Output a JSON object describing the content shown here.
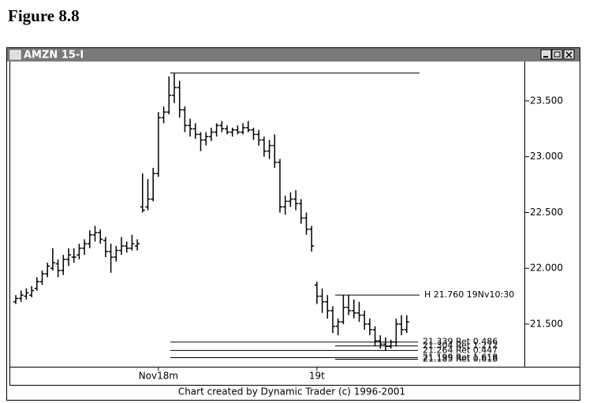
{
  "figure_label": "Figure 8.8",
  "window_title": "AMZN 15-I",
  "footer": "Chart created by Dynamic Trader (c) 1996-2001",
  "chart_data": {
    "type": "ohlc",
    "categories": [
      null,
      null,
      null,
      null,
      null,
      null,
      null,
      null,
      null,
      null,
      null,
      null,
      null,
      null,
      null,
      null,
      null,
      null,
      null,
      null,
      null,
      null,
      null,
      null,
      null,
      null,
      null,
      "Nov18m",
      null,
      null,
      null,
      null,
      null,
      null,
      null,
      null,
      null,
      null,
      null,
      null,
      null,
      null,
      null,
      null,
      null,
      null,
      null,
      null,
      null,
      null,
      null,
      null,
      null,
      null,
      null,
      null,
      null,
      "19t",
      null,
      null,
      null,
      null,
      null,
      null,
      null,
      null,
      null,
      null,
      null,
      null,
      null,
      null,
      null,
      null,
      null
    ],
    "open": [
      21.7,
      21.73,
      21.75,
      21.76,
      21.82,
      21.88,
      21.95,
      22.0,
      22.04,
      21.98,
      22.08,
      22.1,
      22.12,
      22.18,
      22.22,
      22.3,
      22.32,
      22.25,
      22.15,
      22.1,
      22.16,
      22.2,
      22.18,
      22.2,
      22.55,
      22.55,
      22.62,
      22.85,
      23.35,
      23.4,
      23.55,
      23.62,
      23.42,
      23.28,
      23.25,
      23.2,
      23.15,
      23.18,
      23.22,
      23.28,
      23.25,
      23.22,
      23.24,
      23.22,
      23.26,
      23.24,
      23.2,
      23.15,
      23.05,
      23.1,
      22.95,
      22.55,
      22.6,
      22.62,
      22.58,
      22.45,
      22.35,
      21.85,
      21.75,
      21.7,
      21.62,
      21.48,
      21.52,
      21.65,
      21.62,
      21.6,
      21.58,
      21.5,
      21.45,
      21.35,
      21.32,
      21.3,
      21.34,
      21.5,
      21.45
    ],
    "high": [
      21.76,
      21.8,
      21.82,
      21.84,
      21.92,
      21.98,
      22.05,
      22.18,
      22.08,
      22.12,
      22.18,
      22.18,
      22.22,
      22.26,
      22.34,
      22.38,
      22.35,
      22.28,
      22.22,
      22.2,
      22.28,
      22.24,
      22.3,
      22.26,
      22.85,
      22.8,
      22.9,
      23.4,
      23.45,
      23.72,
      23.75,
      23.68,
      23.45,
      23.34,
      23.3,
      23.22,
      23.22,
      23.26,
      23.3,
      23.32,
      23.28,
      23.26,
      23.28,
      23.3,
      23.32,
      23.26,
      23.24,
      23.18,
      23.15,
      23.2,
      22.98,
      22.65,
      22.68,
      22.7,
      22.62,
      22.5,
      22.38,
      21.88,
      21.82,
      21.76,
      21.66,
      21.55,
      21.76,
      21.76,
      21.72,
      21.7,
      21.62,
      21.55,
      21.48,
      21.4,
      21.38,
      21.36,
      21.55,
      21.58,
      21.58
    ],
    "low": [
      21.68,
      21.7,
      21.72,
      21.74,
      21.8,
      21.85,
      21.92,
      21.98,
      21.92,
      21.94,
      22.02,
      22.05,
      22.08,
      22.12,
      22.18,
      22.24,
      22.22,
      22.1,
      21.96,
      22.06,
      22.12,
      22.14,
      22.16,
      22.16,
      22.5,
      22.52,
      22.6,
      22.82,
      23.3,
      23.38,
      23.48,
      23.35,
      23.22,
      23.18,
      23.16,
      23.05,
      23.1,
      23.14,
      23.18,
      23.22,
      23.2,
      23.18,
      23.2,
      23.2,
      23.22,
      23.15,
      23.1,
      23.0,
      22.98,
      22.9,
      22.5,
      22.48,
      22.55,
      22.52,
      22.4,
      22.3,
      22.15,
      21.68,
      21.6,
      21.55,
      21.42,
      21.4,
      21.5,
      21.58,
      21.55,
      21.52,
      21.45,
      21.4,
      21.3,
      21.28,
      21.26,
      21.28,
      21.3,
      21.4,
      21.42
    ],
    "close": [
      21.73,
      21.76,
      21.78,
      21.8,
      21.88,
      21.95,
      22.02,
      22.05,
      21.98,
      22.08,
      22.12,
      22.1,
      22.18,
      22.22,
      22.3,
      22.32,
      22.26,
      22.15,
      22.1,
      22.16,
      22.2,
      22.18,
      22.22,
      22.22,
      22.52,
      22.62,
      22.85,
      23.35,
      23.4,
      23.55,
      23.62,
      23.42,
      23.28,
      23.25,
      23.2,
      23.15,
      23.18,
      23.22,
      23.28,
      23.25,
      23.22,
      23.24,
      23.22,
      23.26,
      23.24,
      23.2,
      23.15,
      23.05,
      23.1,
      22.95,
      22.55,
      22.6,
      22.62,
      22.58,
      22.45,
      22.35,
      22.2,
      21.75,
      21.7,
      21.62,
      21.48,
      21.52,
      21.65,
      21.62,
      21.6,
      21.58,
      21.5,
      21.45,
      21.35,
      21.32,
      21.3,
      21.34,
      21.5,
      21.45,
      21.52
    ],
    "color": "#000000",
    "high_line": 23.75,
    "swing_line": {
      "value": 21.76,
      "label": "H 21.760 19Nv10:30"
    },
    "levels": [
      {
        "value": 21.339,
        "label": "21.339 Ret 0.486"
      },
      {
        "value": 21.304,
        "label": "21.304 Ret 1.272"
      },
      {
        "value": 21.264,
        "label": "21.264 Ret 0.447"
      },
      {
        "value": 21.199,
        "label": "21.199 Ret 1.618"
      },
      {
        "value": 21.185,
        "label": "21.185 Ret 0.618"
      }
    ],
    "ylim": [
      21.118,
      23.853
    ],
    "yticks": [
      {
        "value": 21.5,
        "label": "21.500"
      },
      {
        "value": 22.0,
        "label": "22.000"
      },
      {
        "value": 22.5,
        "label": "22.500"
      },
      {
        "value": 23.0,
        "label": "23.000"
      },
      {
        "value": 23.5,
        "label": "23.500"
      }
    ]
  }
}
